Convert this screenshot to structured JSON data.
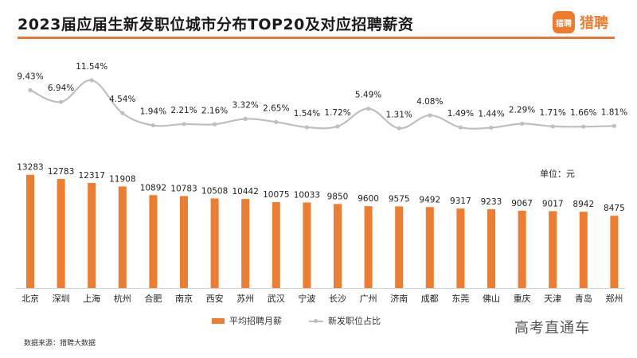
{
  "header": {
    "title": "2023届应届生新发职位城市分布TOP20及对应招聘薪资",
    "brand_logo_text": "猎聘",
    "brand_name": "猎聘"
  },
  "colors": {
    "bar": "#ed7d31",
    "line": "#bfbfbf",
    "accent": "#e8773a"
  },
  "chart_data": {
    "type": "bar",
    "title": "2023届应届生新发职位城市分布TOP20及对应招聘薪资",
    "unit_label": "单位：元",
    "categories": [
      "北京",
      "深圳",
      "上海",
      "杭州",
      "合肥",
      "南京",
      "西安",
      "苏州",
      "武汉",
      "宁波",
      "长沙",
      "广州",
      "济南",
      "成都",
      "东莞",
      "佛山",
      "重庆",
      "天津",
      "青岛",
      "郑州"
    ],
    "series": [
      {
        "name": "平均招聘月薪",
        "type": "bar",
        "values": [
          13283,
          12783,
          12317,
          11908,
          10892,
          10783,
          10508,
          10442,
          10075,
          10033,
          9850,
          9600,
          9575,
          9492,
          9317,
          9233,
          9067,
          9017,
          8942,
          8475
        ]
      },
      {
        "name": "新发职位占比",
        "type": "line",
        "values": [
          9.43,
          6.94,
          11.54,
          4.54,
          1.94,
          2.21,
          2.16,
          3.32,
          2.65,
          1.54,
          1.72,
          5.49,
          1.31,
          4.08,
          1.49,
          1.44,
          2.29,
          1.71,
          1.66,
          1.81
        ],
        "labels": [
          "9.43%",
          "6.94%",
          "11.54%",
          "4.54%",
          "1.94%",
          "2.21%",
          "2.16%",
          "3.32%",
          "2.65%",
          "1.54%",
          "1.72%",
          "5.49%",
          "1.31%",
          "4.08%",
          "1.49%",
          "1.44%",
          "2.29%",
          "1.71%",
          "1.66%",
          "1.81%"
        ]
      }
    ],
    "ylim_bar": [
      0,
      14000
    ],
    "ylim_line": [
      0,
      12
    ]
  },
  "legend": {
    "bar": "平均招聘月薪",
    "line": "新发职位占比"
  },
  "footer": {
    "source": "数据来源：猎聘大数据"
  },
  "watermark": "高考直通车"
}
